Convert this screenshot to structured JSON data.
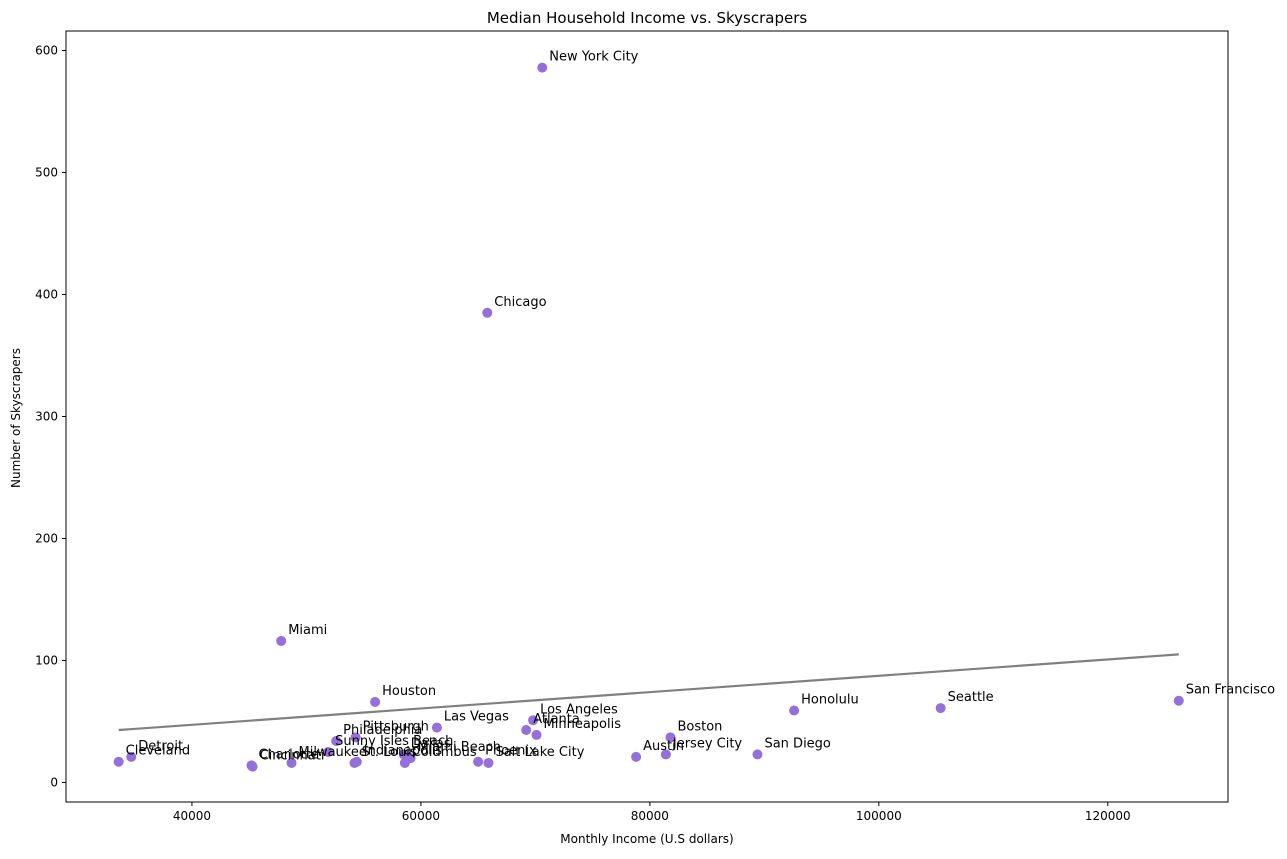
{
  "chart_data": {
    "type": "scatter",
    "title": "Median Household Income vs. Skyscrapers",
    "xlabel": "Monthly Income (U.S dollars)",
    "ylabel": "Number of Skyscrapers",
    "xlim": [
      29000,
      130500
    ],
    "ylim": [
      -16,
      616
    ],
    "xticks": [
      40000,
      60000,
      80000,
      100000,
      120000
    ],
    "yticks": [
      0,
      100,
      200,
      300,
      400,
      500,
      600
    ],
    "grid": false,
    "point_color": "#9370DB",
    "trendline_color": "#808080",
    "trendline": {
      "x": [
        33600,
        126200
      ],
      "y": [
        43,
        105
      ]
    },
    "points": [
      {
        "label": "New York City",
        "x": 70600,
        "y": 586
      },
      {
        "label": "Chicago",
        "x": 65800,
        "y": 385
      },
      {
        "label": "Miami",
        "x": 47800,
        "y": 116
      },
      {
        "label": "Houston",
        "x": 56000,
        "y": 66
      },
      {
        "label": "San Francisco",
        "x": 126200,
        "y": 67
      },
      {
        "label": "Seattle",
        "x": 105400,
        "y": 61
      },
      {
        "label": "Honolulu",
        "x": 92600,
        "y": 59
      },
      {
        "label": "Los Angeles",
        "x": 69800,
        "y": 51
      },
      {
        "label": "Las Vegas",
        "x": 61400,
        "y": 45
      },
      {
        "label": "Atlanta",
        "x": 69200,
        "y": 43
      },
      {
        "label": "Minneapolis",
        "x": 70100,
        "y": 39
      },
      {
        "label": "Boston",
        "x": 81800,
        "y": 37
      },
      {
        "label": "Pittsburgh",
        "x": 54300,
        "y": 37
      },
      {
        "label": "Philadelphia",
        "x": 52600,
        "y": 34
      },
      {
        "label": "Sunny Isles Beach",
        "x": 51900,
        "y": 25
      },
      {
        "label": "Jersey City",
        "x": 81400,
        "y": 23
      },
      {
        "label": "San Diego",
        "x": 89400,
        "y": 23
      },
      {
        "label": "Dallas",
        "x": 58500,
        "y": 23
      },
      {
        "label": "Miami Beach",
        "x": 59100,
        "y": 20
      },
      {
        "label": "Austin",
        "x": 78800,
        "y": 21
      },
      {
        "label": "Detroit",
        "x": 34700,
        "y": 21
      },
      {
        "label": "Cleveland",
        "x": 33600,
        "y": 17
      },
      {
        "label": "Phoenix",
        "x": 65000,
        "y": 17
      },
      {
        "label": "Salt Lake City",
        "x": 65900,
        "y": 16
      },
      {
        "label": "Columbus",
        "x": 58600,
        "y": 16
      },
      {
        "label": "Indianapolis",
        "x": 54400,
        "y": 17
      },
      {
        "label": "St. Louis",
        "x": 54200,
        "y": 16
      },
      {
        "label": "Milwaukee",
        "x": 48700,
        "y": 16
      },
      {
        "label": "Cincinnati",
        "x": 45300,
        "y": 13
      },
      {
        "label": "Charlotte",
        "x": 45200,
        "y": 14
      }
    ]
  }
}
